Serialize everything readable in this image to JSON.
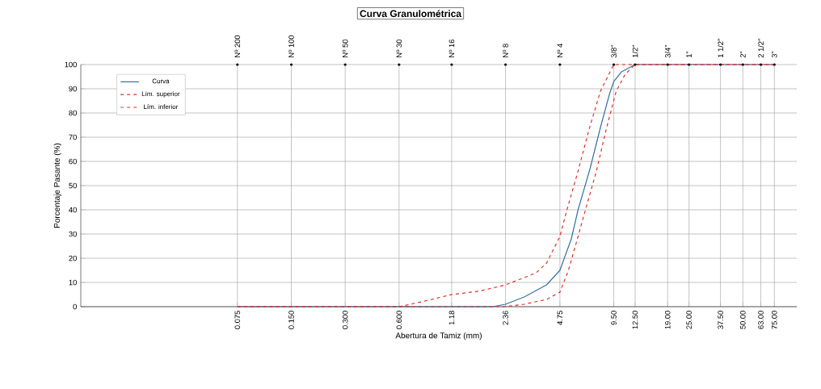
{
  "chart_data": {
    "type": "line",
    "title": "Curva Granulométrica",
    "xlabel": "Abertura de Tamiz (mm)",
    "ylabel": "Porcentaje Pasante (%)",
    "log": "x",
    "grid": true,
    "legend": "top left",
    "xlim": [
      0.01,
      100
    ],
    "ylim": [
      0,
      100
    ],
    "yticks": [
      0,
      10,
      20,
      30,
      40,
      50,
      60,
      70,
      80,
      90,
      100
    ],
    "xticks": [
      {
        "value": 0.075,
        "label": "0.075"
      },
      {
        "value": 0.15,
        "label": "0.150"
      },
      {
        "value": 0.3,
        "label": "0.300"
      },
      {
        "value": 0.6,
        "label": "0.600"
      },
      {
        "value": 1.18,
        "label": "1.18"
      },
      {
        "value": 2.36,
        "label": "2.36"
      },
      {
        "value": 4.75,
        "label": "4.75"
      },
      {
        "value": 9.5,
        "label": "9.50"
      },
      {
        "value": 12.5,
        "label": "12.50"
      },
      {
        "value": 19,
        "label": "19.00"
      },
      {
        "value": 25,
        "label": "25.00"
      },
      {
        "value": 37.5,
        "label": "37.50"
      },
      {
        "value": 50,
        "label": "50.00"
      },
      {
        "value": 63,
        "label": "63.00"
      },
      {
        "value": 75,
        "label": "75.00"
      }
    ],
    "annotations": [
      {
        "text": "Nº 200",
        "x": 0.075,
        "y": 100
      },
      {
        "text": "Nº 100",
        "x": 0.15,
        "y": 100
      },
      {
        "text": "Nº 50",
        "x": 0.3,
        "y": 100
      },
      {
        "text": "Nº 30",
        "x": 0.6,
        "y": 100
      },
      {
        "text": "Nº 16",
        "x": 1.18,
        "y": 100
      },
      {
        "text": "Nº 8",
        "x": 2.36,
        "y": 100
      },
      {
        "text": "Nº 4",
        "x": 4.75,
        "y": 100
      },
      {
        "text": "3/8\"",
        "x": 9.5,
        "y": 100
      },
      {
        "text": "1/2\"",
        "x": 12.5,
        "y": 100
      },
      {
        "text": "3/4\"",
        "x": 19,
        "y": 100
      },
      {
        "text": "1\"",
        "x": 25,
        "y": 100
      },
      {
        "text": "1 1/2\"",
        "x": 37.5,
        "y": 100
      },
      {
        "text": "2\"",
        "x": 50,
        "y": 100
      },
      {
        "text": "2 1/2\"",
        "x": 63,
        "y": 100
      },
      {
        "text": "3\"",
        "x": 75,
        "y": 100
      }
    ],
    "series": [
      {
        "name": "Curva",
        "color": "#3a6fa0",
        "line_style": "solid",
        "x": [
          0.075,
          0.6,
          1.18,
          2.0,
          2.36,
          3.0,
          4.0,
          4.75,
          5.5,
          6.0,
          7.0,
          8.0,
          9.0,
          9.5,
          10.5,
          12.5,
          19,
          75
        ],
        "values": [
          0,
          0,
          0,
          0,
          1,
          4,
          9,
          15,
          28,
          40,
          57,
          74,
          88,
          93,
          97,
          100,
          100,
          100
        ]
      },
      {
        "name": "Lím. superior",
        "color": "#e03030",
        "line_style": "dashed",
        "x": [
          0.075,
          0.6,
          0.8,
          1.18,
          1.7,
          2.36,
          3.0,
          3.5,
          4.0,
          4.75,
          5.2,
          6.0,
          6.9,
          8.0,
          9.5,
          12.5,
          75
        ],
        "values": [
          0,
          0,
          2,
          5,
          6.5,
          9,
          12,
          14,
          18,
          29,
          40,
          56,
          73,
          89,
          100,
          100,
          100
        ]
      },
      {
        "name": "Lím. inferior",
        "color": "#e03030",
        "line_style": "dashed",
        "x": [
          0.075,
          2.36,
          3.0,
          4.0,
          4.75,
          5.3,
          6.0,
          6.6,
          7.6,
          8.6,
          9.8,
          11,
          12.5,
          75
        ],
        "values": [
          0,
          0,
          1,
          3,
          6,
          15,
          29,
          40,
          56,
          73,
          89,
          96,
          100,
          100
        ]
      }
    ]
  }
}
